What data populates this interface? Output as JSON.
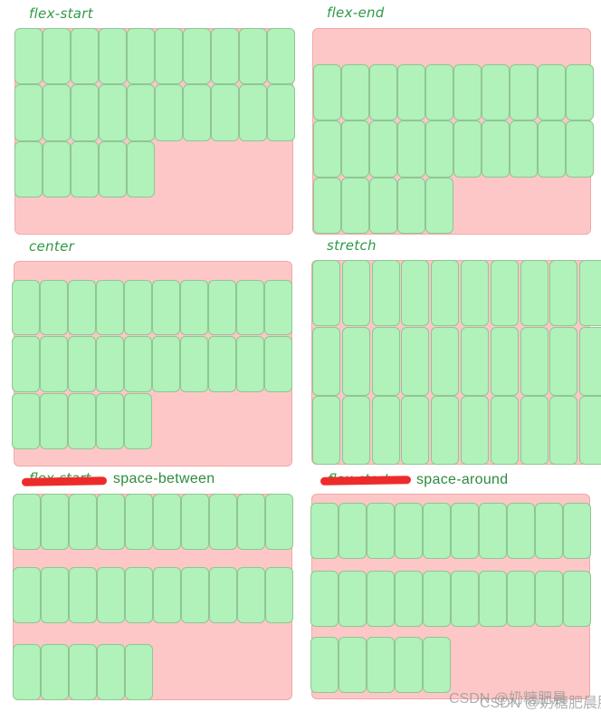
{
  "colors": {
    "container_bg": "#fdc7c7",
    "container_border": "#f2a7a7",
    "item_bg": "#b0f2b9",
    "item_border": "#8fc694",
    "label_color": "#2f9a45",
    "strike_color": "#ee2b2b"
  },
  "panels": [
    {
      "id": "flex-start",
      "label": "flex-start",
      "rows": [
        10,
        10,
        5
      ]
    },
    {
      "id": "flex-end",
      "label": "flex-end",
      "rows": [
        10,
        10,
        5
      ]
    },
    {
      "id": "center",
      "label": "center",
      "rows": [
        10,
        10,
        5
      ]
    },
    {
      "id": "stretch",
      "label": "stretch",
      "rows": [
        10,
        10,
        10
      ]
    },
    {
      "id": "space-between",
      "label": "space-between",
      "struck_label": "flex-start",
      "rows": [
        10,
        10,
        5
      ]
    },
    {
      "id": "space-around",
      "label": "space-around",
      "struck_label": "flex-start",
      "rows": [
        10,
        10,
        5
      ]
    }
  ],
  "labels": {
    "flex_start": "flex-start",
    "flex_end": "flex-end",
    "center": "center",
    "stretch": "stretch",
    "space_between": "space-between",
    "space_around": "space-around",
    "struck_between": "flex-start",
    "struck_around": "flex-start"
  },
  "watermark": {
    "text_1": "CSDN @奶糖肥晨",
    "text_2": "CSDN @奶糖肥晨肥"
  }
}
